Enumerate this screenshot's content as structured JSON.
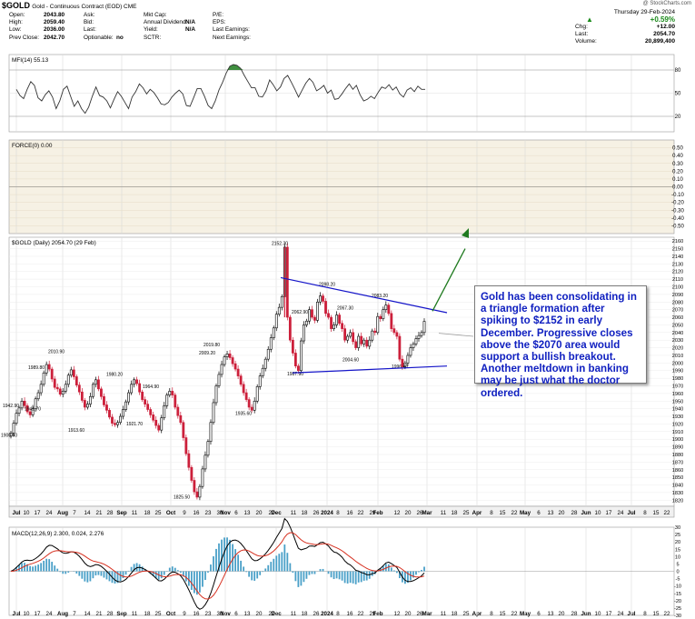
{
  "header": {
    "symbol": "$GOLD",
    "description": "Gold - Continuous Contract (EOD) CME",
    "credit": "@ StockCharts.com",
    "quote_left": [
      {
        "label": "Open:",
        "value": "2043.80"
      },
      {
        "label": "High:",
        "value": "2059.40"
      },
      {
        "label": "Low:",
        "value": "2036.00"
      },
      {
        "label": "Prev Close:",
        "value": "2042.70"
      }
    ],
    "quote_mid": [
      "Ask:",
      "Bid:",
      "Last:",
      "Optionable:"
    ],
    "optionable_value": "no",
    "quote_mid2": [
      {
        "label": "Mkt Cap:",
        "value": ""
      },
      {
        "label": "Annual Dividend:",
        "value": "N/A"
      },
      {
        "label": "Yield:",
        "value": "N/A"
      },
      {
        "label": "SCTR:",
        "value": ""
      }
    ],
    "quote_mid3": [
      "P/E:",
      "EPS:",
      "Last Earnings:",
      "Next Earnings:"
    ],
    "date_line": "Thursday  29-Feb-2024",
    "pct_change": "+0.59%",
    "stats": [
      {
        "label": "Chg:",
        "value": "+12.00"
      },
      {
        "label": "Last:",
        "value": "2054.70"
      },
      {
        "label": "Volume:",
        "value": "20,899,400"
      }
    ]
  },
  "colors": {
    "up": "#000000",
    "down": "#cc1f3a",
    "trend": "#1414c8",
    "arrow": "#1f7a1f",
    "mfi_fill": "#3f8f3f",
    "text_blue": "#1020c0",
    "macd_hist": "#4aa0c8",
    "macd_line": "#000000",
    "signal_line": "#d63020"
  },
  "annotation": "Gold has been consolidating in a triangle formation after spiking to $2152 in early December. Progressive closes above the $2070 area would support a bullish breakout. Another meltdown in banking may be just what the doctor ordered.",
  "chart_data": [
    {
      "panel": "mfi",
      "type": "line",
      "label": "MFI(14) 55.13",
      "ylim": [
        0,
        100
      ],
      "yticks": [
        20,
        50,
        80
      ],
      "values": [
        55,
        47,
        43,
        55,
        65,
        60,
        44,
        40,
        48,
        53,
        45,
        30,
        40,
        55,
        59,
        46,
        33,
        40,
        30,
        24,
        32,
        46,
        58,
        47,
        45,
        40,
        31,
        42,
        52,
        46,
        38,
        30,
        45,
        52,
        62,
        57,
        49,
        55,
        51,
        44,
        36,
        35,
        38,
        45,
        50,
        54,
        49,
        34,
        33,
        44,
        56,
        56,
        46,
        34,
        30,
        40,
        54,
        64,
        76,
        85,
        87,
        86,
        82,
        73,
        65,
        57,
        57,
        46,
        45,
        53,
        67,
        61,
        53,
        58,
        69,
        73,
        64,
        55,
        45,
        54,
        63,
        69,
        64,
        53,
        56,
        60,
        50,
        54,
        42,
        43,
        49,
        56,
        62,
        55,
        60,
        48,
        40,
        42,
        46,
        43,
        51,
        58,
        56,
        61,
        54,
        58,
        49,
        45,
        54,
        57,
        52,
        59,
        55,
        55
      ]
    },
    {
      "panel": "force",
      "type": "line",
      "label": "FORCE(0) 0.00",
      "ylim": [
        -0.6,
        0.6
      ],
      "yticks": [
        "0.50",
        "0.40",
        "0.30",
        "0.20",
        "0.10",
        "0.00",
        "-0.10",
        "-0.20",
        "-0.30",
        "-0.40",
        "-0.50"
      ],
      "values": [
        0
      ]
    },
    {
      "panel": "price",
      "type": "candlestick",
      "label": "$GOLD (Daily) 2054.70 (29 Feb)",
      "ylim": [
        1812,
        2165
      ],
      "yticks": [
        1820,
        1830,
        1840,
        1850,
        1860,
        1870,
        1880,
        1890,
        1900,
        1910,
        1920,
        1930,
        1940,
        1950,
        1960,
        1970,
        1980,
        1990,
        2000,
        2010,
        2020,
        2030,
        2040,
        2050,
        2060,
        2070,
        2080,
        2090,
        2100,
        2110,
        2120,
        2130,
        2140,
        2150,
        2160
      ],
      "closes": [
        1908,
        1921,
        1934,
        1941,
        1950,
        1944,
        1936,
        1932,
        1940,
        1953,
        1961,
        1972,
        1987,
        1998,
        1992,
        1979,
        1968,
        1966,
        1959,
        1963,
        1972,
        1984,
        1991,
        1982,
        1971,
        1962,
        1951,
        1942,
        1946,
        1956,
        1972,
        1978,
        1966,
        1956,
        1945,
        1938,
        1929,
        1921,
        1919,
        1922,
        1930,
        1939,
        1949,
        1961,
        1972,
        1978,
        1973,
        1962,
        1952,
        1946,
        1939,
        1932,
        1925,
        1918,
        1912,
        1928,
        1944,
        1958,
        1963,
        1958,
        1942,
        1931,
        1922,
        1902,
        1881,
        1863,
        1846,
        1831,
        1824,
        1838,
        1861,
        1879,
        1897,
        1922,
        1948,
        1970,
        1985,
        1998,
        2008,
        2012,
        2007,
        1999,
        1992,
        1983,
        1972,
        1961,
        1952,
        1942,
        1938,
        1950,
        1969,
        1983,
        1993,
        2005,
        2018,
        2033,
        2046,
        2064,
        2073,
        2087,
        2152,
        2060,
        2030,
        2013,
        1996,
        1990,
        2029,
        2050,
        2055,
        2070,
        2060,
        2056,
        2080,
        2088,
        2081,
        2065,
        2060,
        2045,
        2050,
        2063,
        2052,
        2045,
        2030,
        2035,
        2040,
        2028,
        2020,
        2035,
        2025,
        2030,
        2022,
        2030,
        2042,
        2040,
        2061,
        2058,
        2070,
        2076,
        2065,
        2045,
        2040,
        2035,
        2005,
        1995,
        2000,
        2010,
        2020,
        2025,
        2032,
        2036,
        2040,
        2054.7
      ],
      "labels": [
        "1900.60",
        "1942.90",
        "1941.70",
        "1989.80",
        "2010.90",
        "1913.60",
        "1980.20",
        "1921.70",
        "1964.90",
        "1825.50",
        "2009.20",
        "2019.80",
        "1935.60",
        "2152.30",
        "2062.90",
        "1987.90",
        "2098.20",
        "2067.30",
        "2004.60",
        "2083.20",
        "1996.40"
      ],
      "trendlines": [
        {
          "from": [
            "Dec 4",
            2112
          ],
          "to": [
            "Mar 1",
            2066
          ]
        },
        {
          "from": [
            "Dec 13",
            1987
          ],
          "to": [
            "Mar 1",
            1996
          ]
        }
      ],
      "arrow": {
        "from": [
          "Feb 29",
          2066
        ],
        "to": [
          "Mar 8",
          2118
        ]
      }
    },
    {
      "panel": "macd",
      "type": "line",
      "label": "MACD(12,26,9) 2.300, 0.024, 2.276",
      "ylim": [
        -30,
        30
      ],
      "yticks": [
        30,
        25,
        20,
        15,
        10,
        5,
        0,
        -5,
        -10,
        -15,
        -20,
        -25,
        -30
      ]
    }
  ],
  "x_axis": {
    "labels": [
      "Jul",
      "10",
      "17",
      "24",
      "Aug",
      "7",
      "14",
      "21",
      "28",
      "Sep",
      "11",
      "18",
      "25",
      "Oct",
      "9",
      "16",
      "23",
      "30",
      "Nov",
      "6",
      "13",
      "20",
      "27",
      "Dec",
      "11",
      "18",
      "26",
      "2024",
      "8",
      "16",
      "22",
      "29",
      "Feb",
      "12",
      "20",
      "26",
      "Mar",
      "11",
      "18",
      "25",
      "Apr",
      "8",
      "15",
      "22",
      "May",
      "6",
      "13",
      "20",
      "28",
      "Jun",
      "10",
      "17",
      "24",
      "Jul",
      "8",
      "15",
      "22"
    ],
    "bold_labels": [
      "Jul",
      "Aug",
      "Sep",
      "Oct",
      "Nov",
      "Dec",
      "2024",
      "Feb",
      "Mar",
      "Apr",
      "May",
      "Jun"
    ]
  }
}
